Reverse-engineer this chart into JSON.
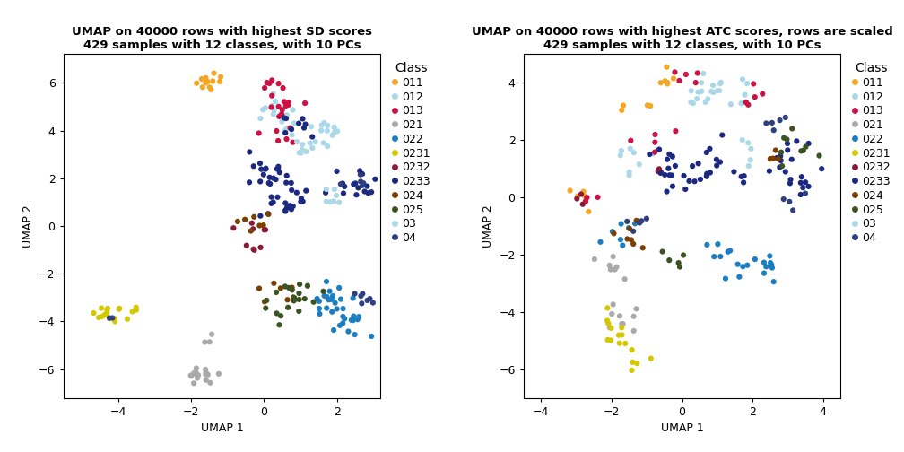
{
  "title1": "UMAP on 40000 rows with highest SD scores\n429 samples with 12 classes, with 10 PCs",
  "title2": "UMAP on 40000 rows with highest ATC scores, rows are scaled\n429 samples with 12 classes, with 10 PCs",
  "xlabel": "UMAP 1",
  "ylabel": "UMAP 2",
  "classes": [
    "011",
    "012",
    "013",
    "021",
    "022",
    "0231",
    "0232",
    "0233",
    "024",
    "025",
    "03",
    "04"
  ],
  "colors": {
    "011": "#F5A623",
    "012": "#A8D8EA",
    "013": "#CC1144",
    "021": "#AAAAAA",
    "022": "#1B7EC2",
    "0231": "#D4C800",
    "0232": "#8B1A3A",
    "0233": "#1C2980",
    "024": "#7B3F00",
    "025": "#3B5323",
    "03": "#ADD8E6",
    "04": "#2F4080"
  },
  "plot1": {
    "xlim": [
      -5.5,
      3.2
    ],
    "ylim": [
      -7.2,
      7.2
    ],
    "xticks": [
      -4,
      -2,
      0,
      2
    ],
    "yticks": [
      -6,
      -4,
      -2,
      0,
      2,
      4,
      6
    ]
  },
  "plot2": {
    "xlim": [
      -4.5,
      4.5
    ],
    "ylim": [
      -7.0,
      5.0
    ],
    "xticks": [
      -4,
      -2,
      0,
      2,
      4
    ],
    "yticks": [
      -6,
      -4,
      -2,
      0,
      2,
      4
    ]
  },
  "point_size": 20,
  "background_color": "#FFFFFF",
  "panel_bg": "#FFFFFF",
  "legend_title_fontsize": 10,
  "legend_fontsize": 9,
  "title_fontsize": 9.5,
  "axis_label_fontsize": 9
}
